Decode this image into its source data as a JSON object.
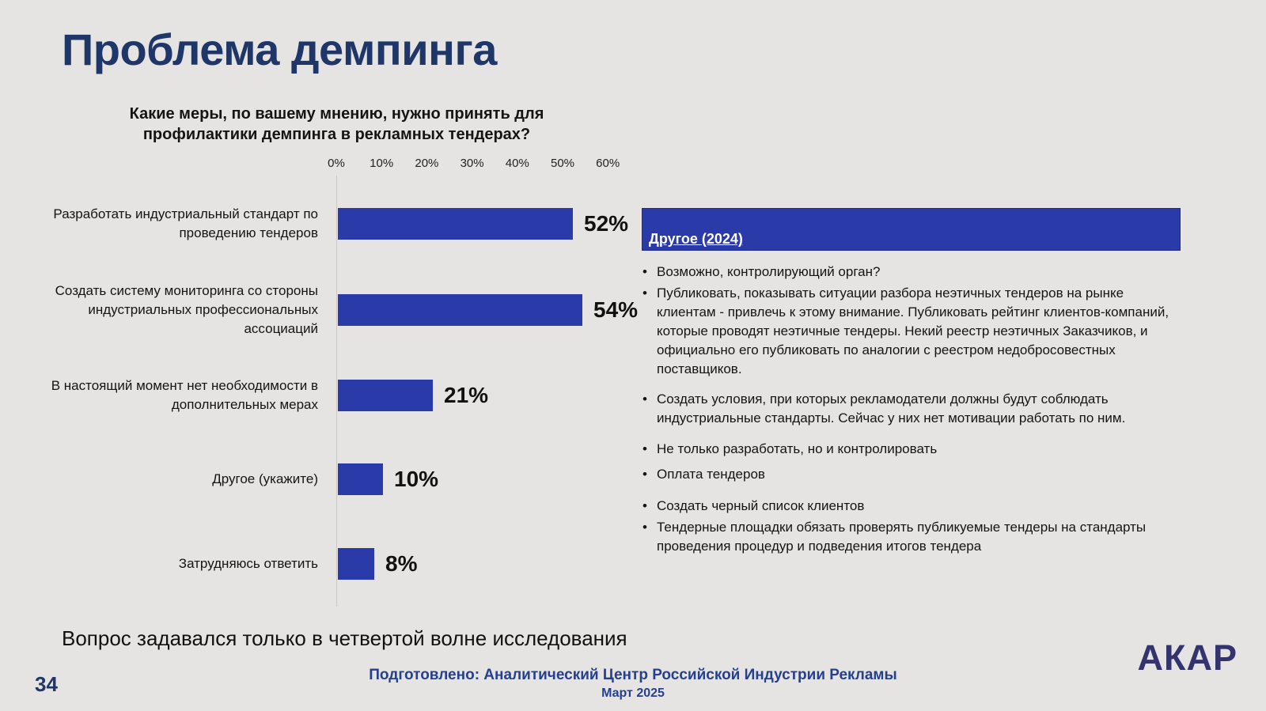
{
  "slide": {
    "title": "Проблема демпинга",
    "note": "Вопрос задавался только в четвертой волне исследования",
    "page_number": "34",
    "footer_prepared_by": "Подготовлено: Аналитический Центр Российской Индустрии Рекламы",
    "footer_date": "Март 2025",
    "logo_text": "АКАР"
  },
  "chart_data": {
    "type": "bar",
    "orientation": "horizontal",
    "title": "Какие меры, по вашему мнению, нужно принять для профилактики демпинга в рекламных тендерах?",
    "categories": [
      "Разработать индустриальный стандарт по проведению тендеров",
      "Создать систему мониторинга со стороны индустриальных профессиональных ассоциаций",
      "В настоящий момент нет необходимости в дополнительных мерах",
      "Другое (укажите)",
      "Затрудняюсь ответить"
    ],
    "values": [
      52,
      54,
      21,
      10,
      8
    ],
    "value_labels": [
      "52%",
      "54%",
      "21%",
      "10%",
      "8%"
    ],
    "x_ticks": [
      "0%",
      "10%",
      "20%",
      "30%",
      "40%",
      "50%",
      "60%"
    ],
    "xlim": [
      0,
      60
    ],
    "grid": false,
    "legend": false,
    "bar_color": "#2A3AA8"
  },
  "side_panel": {
    "header": "Другое (2024)",
    "bullets": [
      "Возможно, контролирующий орган?",
      "Публиковать, показывать ситуации разбора неэтичных тендеров на рынке клиентам - привлечь к этому внимание. Публиковать рейтинг клиентов-компаний, которые проводят неэтичные тендеры. Некий реестр неэтичных Заказчиков, и официально его публиковать по аналогии с реестром недобросовестных поставщиков.",
      "Создать условия, при которых рекламодатели должны будут соблюдать индустриальные стандарты. Сейчас у них нет мотивации работать по ним.",
      "Не только разработать, но и контролировать",
      "Оплата тендеров",
      "Создать черный список клиентов",
      "Тендерные площадки обязать проверять публикуемые тендеры на стандарты проведения процедур и подведения итогов тендера"
    ]
  },
  "colors": {
    "background": "#E5E4E2",
    "accent_blue": "#2A3AA8",
    "title_navy": "#1E3768",
    "footer_blue": "#24408E",
    "logo_navy": "#33336F"
  }
}
